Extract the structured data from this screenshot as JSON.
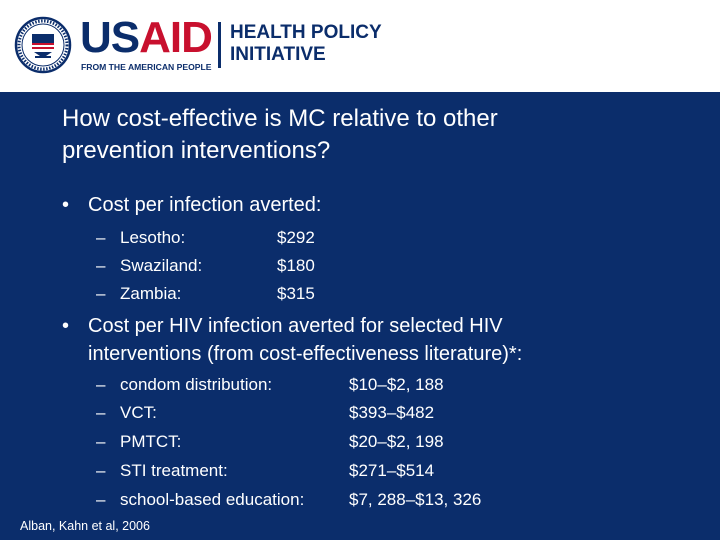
{
  "header": {
    "logo_word_u": "U",
    "logo_word_s": "S",
    "logo_word_aid": "AID",
    "logo_tagline": "FROM THE AMERICAN PEOPLE",
    "program_line1": "HEALTH POLICY",
    "program_line2": "INITIATIVE"
  },
  "title": {
    "line1": "How cost-effective is MC relative to other",
    "line2": "prevention interventions?"
  },
  "bullet1": {
    "symbol": "•",
    "text": "Cost per infection averted:",
    "items": [
      {
        "dash": "–",
        "label": "Lesotho:",
        "value": "$292"
      },
      {
        "dash": "–",
        "label": "Swaziland:",
        "value": "$180"
      },
      {
        "dash": "–",
        "label": "Zambia:",
        "value": "$315"
      }
    ]
  },
  "bullet2": {
    "symbol": "•",
    "line1": "Cost per HIV infection averted for selected HIV",
    "line2": "interventions (from cost-effectiveness literature)*:",
    "items": [
      {
        "dash": "–",
        "label": "condom distribution:",
        "value": "$10–$2, 188"
      },
      {
        "dash": "–",
        "label": "VCT:",
        "value": "$393–$482"
      },
      {
        "dash": "–",
        "label": "PMTCT:",
        "value": "$20–$2, 198"
      },
      {
        "dash": "–",
        "label": "STI treatment:",
        "value": "$271–$514"
      },
      {
        "dash": "–",
        "label": "school-based education:",
        "value": "$7, 288–$13, 326"
      }
    ]
  },
  "citation": "Alban, Kahn et al, 2006",
  "colors": {
    "background": "#0b2d6b",
    "header_bg": "#ffffff",
    "usaid_blue": "#0b2d6b",
    "usaid_red": "#c8102e",
    "text": "#ffffff"
  }
}
